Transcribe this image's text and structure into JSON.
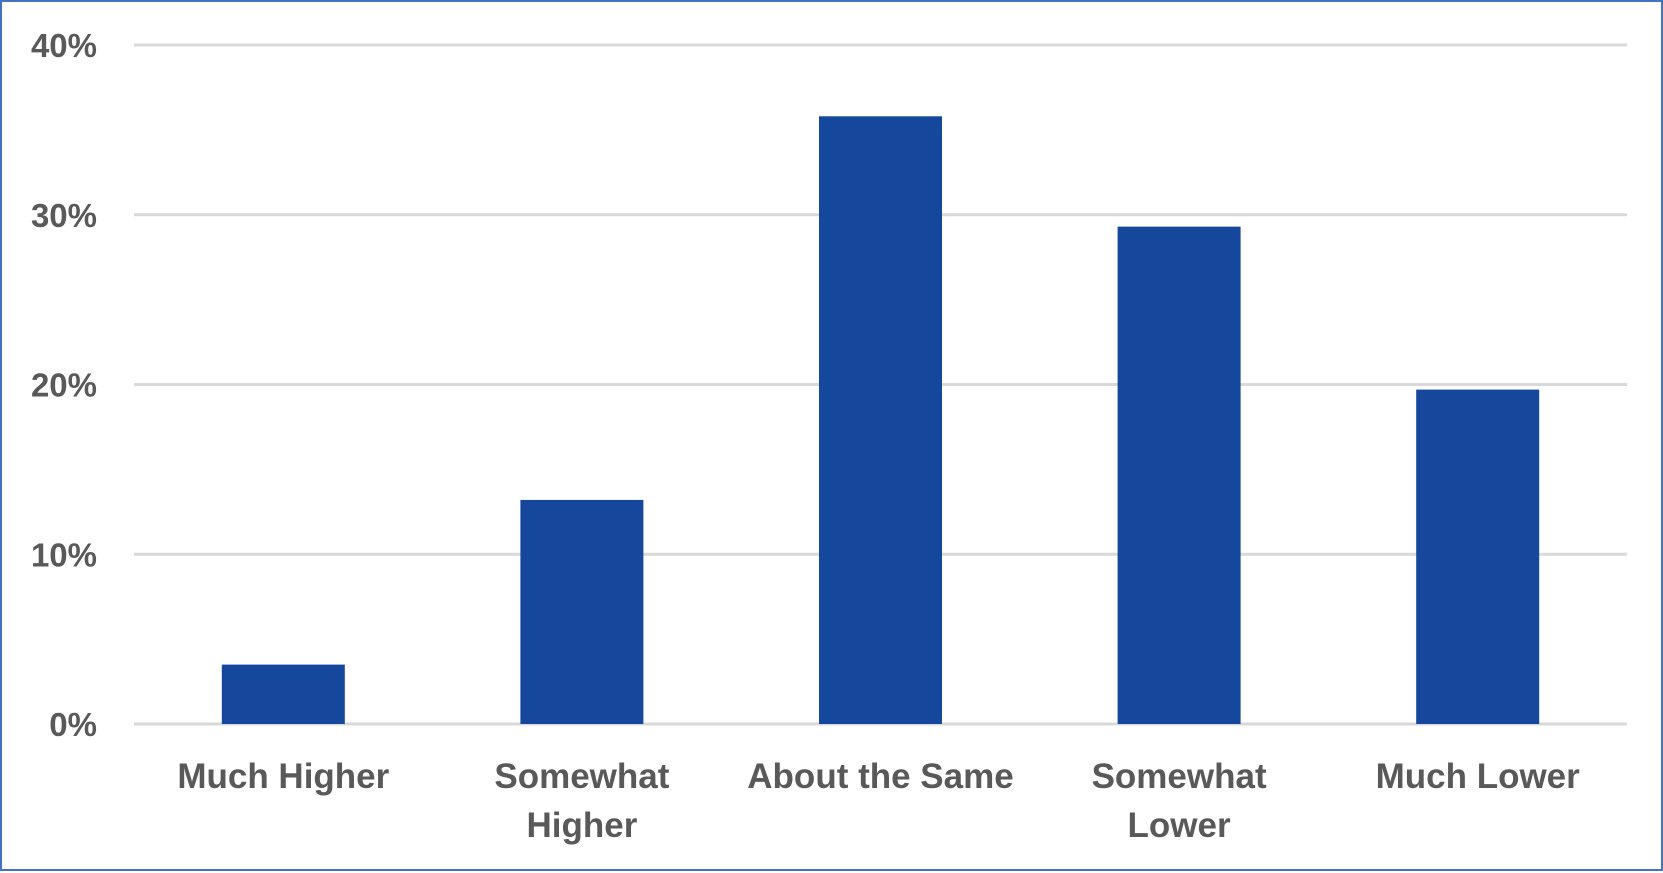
{
  "chart_data": {
    "type": "bar",
    "title": "",
    "xlabel": "",
    "ylabel": "",
    "categories": [
      [
        "Much Higher"
      ],
      [
        "Somewhat",
        "Higher"
      ],
      [
        "About the Same"
      ],
      [
        "Somewhat",
        "Lower"
      ],
      [
        "Much Lower"
      ]
    ],
    "values": [
      3.5,
      13.2,
      35.8,
      29.3,
      19.7
    ],
    "ylim": [
      0,
      40
    ],
    "yticks": [
      "0%",
      "10%",
      "20%",
      "30%",
      "40%"
    ],
    "grid": true,
    "legend": "none",
    "colors": {
      "bar": "#15489c",
      "grid": "#d9d9d9",
      "text": "#595959",
      "border": "#4472c4"
    }
  }
}
